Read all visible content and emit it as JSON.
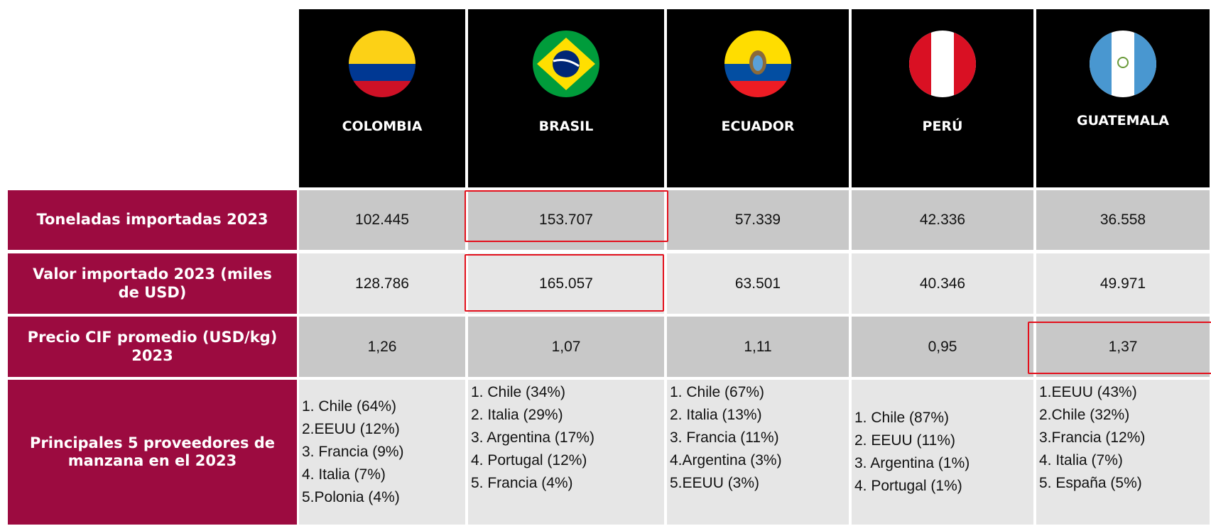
{
  "table": {
    "columns": [
      "COLOMBIA",
      "BRASIL",
      "ECUADOR",
      "PERÚ",
      "GUATEMALA"
    ],
    "rows": [
      {
        "label": "Toneladas importadas 2023",
        "values": [
          "102.445",
          "153.707",
          "57.339",
          "42.336",
          "36.558"
        ]
      },
      {
        "label": "Valor importado 2023 (miles de USD)",
        "values": [
          "128.786",
          "165.057",
          "63.501",
          "40.346",
          "49.971"
        ]
      },
      {
        "label": "Precio CIF promedio (USD/kg) 2023",
        "values": [
          "1,26",
          "1,07",
          "1,11",
          "0,95",
          "1,37"
        ]
      },
      {
        "label": "Principales 5  proveedores de manzana en el 2023",
        "values": [
          [
            "1. Chile (64%)",
            "2.EEUU (12%)",
            "3. Francia (9%)",
            "4. Italia (7%)",
            "5.Polonia (4%)"
          ],
          [
            "1. Chile (34%)",
            "2. Italia (29%)",
            "3. Argentina (17%)",
            "4. Portugal (12%)",
            "5. Francia (4%)"
          ],
          [
            "1. Chile (67%)",
            "2. Italia (13%)",
            "3. Francia (11%)",
            "4.Argentina (3%)",
            "5.EEUU (3%)"
          ],
          [
            "1. Chile (87%)",
            "2. EEUU (11%)",
            "3. Argentina (1%)",
            "4. Portugal (1%)"
          ],
          [
            "1.EEUU (43%)",
            "2.Chile (32%)",
            "3.Francia (12%)",
            "4. Italia (7%)",
            "5. España (5%)"
          ]
        ]
      }
    ]
  }
}
